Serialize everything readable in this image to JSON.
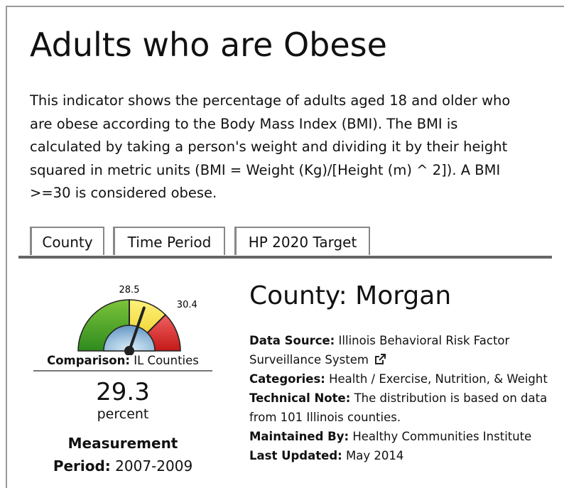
{
  "title": "Adults who are Obese",
  "description_lines": [
    "This indicator shows the percentage of adults aged 18 and older who",
    "are obese according to the Body Mass Index (BMI). The BMI is",
    "calculated by taking a person's weight and dividing it by their height",
    "squared in metric units (BMI = Weight (Kg)/[Height (m) ^ 2]). A BMI",
    ">=30 is considered obese."
  ],
  "tabs": [
    "County",
    "Time Period",
    "HP 2020 Target"
  ],
  "gauge": {
    "low": 28.5,
    "high": 30.4
  },
  "comparison": {
    "label": "Comparison:",
    "value": "IL Counties"
  },
  "value": 29.3,
  "unit": "percent",
  "period": {
    "label": "Measurement Period:",
    "value": "2007-2009"
  },
  "location": "County: Morgan",
  "details": [
    {
      "label": "Data Source:",
      "value": "Illinois Behavioral Risk Factor Surveillance System"
    },
    {
      "label": "Categories:",
      "value": "Health / Exercise, Nutrition, & Weight"
    },
    {
      "label": "Technical Note:",
      "value": "The distribution is based on data from 101 Illinois counties."
    },
    {
      "label": "Maintained By:",
      "value": "Healthy Communities Institute"
    },
    {
      "label": "Last Updated:",
      "value": "May 2014"
    }
  ]
}
